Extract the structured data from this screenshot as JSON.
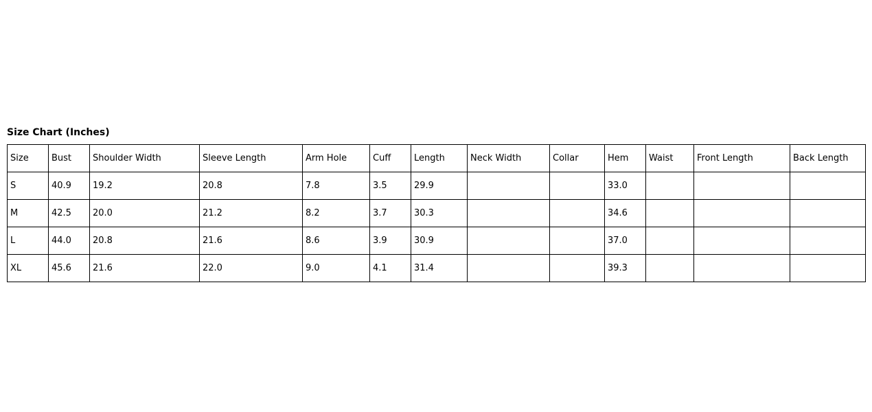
{
  "title": "Size Chart (Inches)",
  "table": {
    "columns": [
      "Size",
      "Bust",
      "Shoulder Width",
      "Sleeve Length",
      "Arm Hole",
      "Cuff",
      "Length",
      "Neck Width",
      "Collar",
      "Hem",
      "Waist",
      "Front Length",
      "Back Length"
    ],
    "rows": [
      [
        "S",
        "40.9",
        "19.2",
        "20.8",
        "7.8",
        "3.5",
        "29.9",
        "",
        "",
        "33.0",
        "",
        "",
        ""
      ],
      [
        "M",
        "42.5",
        "20.0",
        "21.2",
        "8.2",
        "3.7",
        "30.3",
        "",
        "",
        "34.6",
        "",
        "",
        ""
      ],
      [
        "L",
        "44.0",
        "20.8",
        "21.6",
        "8.6",
        "3.9",
        "30.9",
        "",
        "",
        "37.0",
        "",
        "",
        ""
      ],
      [
        "XL",
        "45.6",
        "21.6",
        "22.0",
        "9.0",
        "4.1",
        "31.4",
        "",
        "",
        "39.3",
        "",
        "",
        ""
      ]
    ]
  }
}
